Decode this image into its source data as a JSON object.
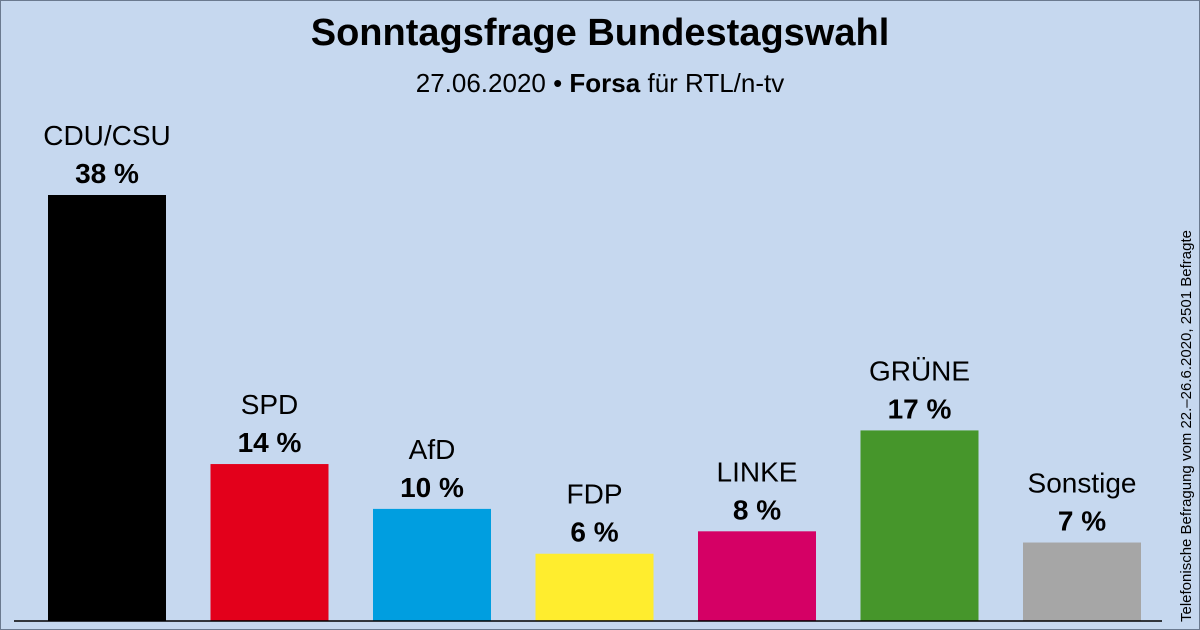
{
  "title": "Sonntagsfrage Bundestagswahl",
  "subtitle": {
    "date": "27.06.2020 •",
    "institute": "Forsa",
    "client": "für RTL/n-tv"
  },
  "side_note": "Telefonische Befragung vom 22.–26.6.2020, 2501 Befragte",
  "chart_data": {
    "type": "bar",
    "title": "Sonntagsfrage Bundestagswahl",
    "categories": [
      "CDU/CSU",
      "SPD",
      "AfD",
      "FDP",
      "LINKE",
      "GRÜNE",
      "Sonstige"
    ],
    "values": [
      38,
      14,
      10,
      6,
      8,
      17,
      7
    ],
    "value_labels": [
      "38 %",
      "14 %",
      "10 %",
      "6 %",
      "8 %",
      "17 %",
      "7 %"
    ],
    "colors": [
      "#000000",
      "#e3001b",
      "#009ee0",
      "#ffed2e",
      "#d50065",
      "#46962b",
      "#a6a6a6"
    ],
    "ylim": [
      0,
      38
    ],
    "unit": "%",
    "grid": false,
    "legend": "none"
  }
}
